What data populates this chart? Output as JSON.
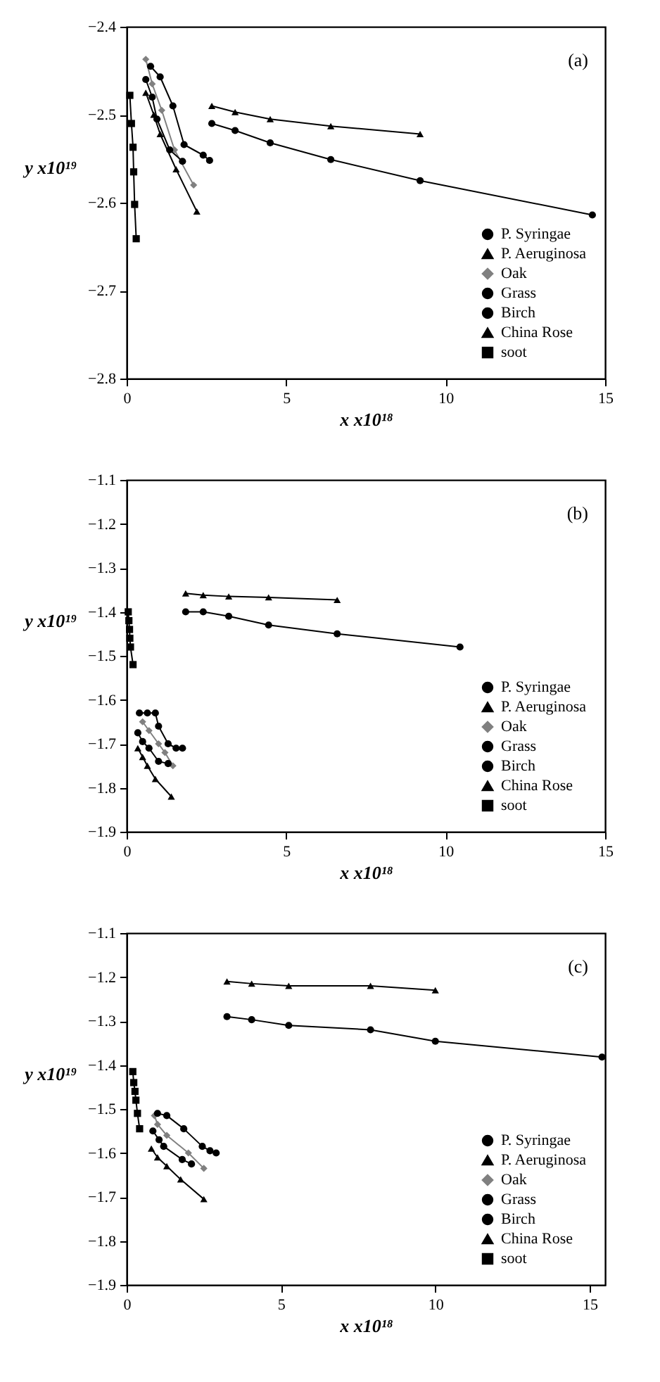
{
  "chart_data": [
    {
      "type": "line",
      "xlabel": "x x10¹⁸",
      "ylabel": "y x10¹⁹",
      "annotations": [
        "(a)"
      ],
      "xlim": [
        0,
        15
      ],
      "xticks": [
        0,
        5,
        10,
        15
      ],
      "ylim": [
        -2.8,
        -2.4
      ],
      "yticks": [
        -2.8,
        -2.7,
        -2.6,
        -2.5,
        -2.4
      ],
      "legend": "bottom right",
      "line_style": "solid",
      "series": [
        {
          "name": "P. Syringae",
          "color": "#000000",
          "marker": "circle",
          "x": [
            2.67,
            3.4,
            4.5,
            6.4,
            9.2,
            14.6
          ],
          "values": [
            -2.51,
            -2.518,
            -2.532,
            -2.551,
            -2.575,
            -2.614
          ]
        },
        {
          "name": "P. Aeruginosa",
          "color": "#000000",
          "marker": "triangle",
          "x": [
            2.67,
            3.4,
            4.5,
            6.4,
            9.2
          ],
          "values": [
            -2.49,
            -2.497,
            -2.505,
            -2.513,
            -2.522
          ]
        },
        {
          "name": "Oak",
          "color": "#808080",
          "marker": "diamond",
          "x": [
            0.6,
            0.8,
            1.1,
            1.5,
            2.1
          ],
          "values": [
            -2.437,
            -2.465,
            -2.495,
            -2.54,
            -2.58
          ]
        },
        {
          "name": "Grass",
          "color": "#000000",
          "marker": "circle",
          "x": [
            0.6,
            0.8,
            0.95,
            1.35,
            1.75
          ],
          "values": [
            -2.46,
            -2.48,
            -2.505,
            -2.54,
            -2.553
          ]
        },
        {
          "name": "Birch",
          "color": "#000000",
          "marker": "circle",
          "x": [
            0.75,
            1.05,
            1.45,
            1.8,
            2.4,
            2.6
          ],
          "values": [
            -2.445,
            -2.457,
            -2.49,
            -2.534,
            -2.546,
            -2.552
          ]
        },
        {
          "name": "China Rose",
          "color": "#000000",
          "marker": "triangle",
          "x": [
            0.6,
            0.85,
            1.05,
            1.55,
            2.2
          ],
          "values": [
            -2.475,
            -2.5,
            -2.522,
            -2.562,
            -2.61
          ]
        },
        {
          "name": "soot",
          "color": "#000000",
          "marker": "square",
          "x": [
            0.1,
            0.15,
            0.2,
            0.22,
            0.25,
            0.3
          ],
          "values": [
            -2.478,
            -2.51,
            -2.537,
            -2.565,
            -2.602,
            -2.641
          ]
        }
      ]
    },
    {
      "type": "line",
      "xlabel": "x x10¹⁸",
      "ylabel": "y x10¹⁹",
      "annotations": [
        "(b)"
      ],
      "xlim": [
        0,
        15
      ],
      "xticks": [
        0,
        5,
        10,
        15
      ],
      "ylim": [
        -1.9,
        -1.1
      ],
      "yticks": [
        -1.9,
        -1.8,
        -1.7,
        -1.6,
        -1.5,
        -1.4,
        -1.3,
        -1.2,
        -1.1
      ],
      "legend": "bottom right",
      "line_style": "solid",
      "series": [
        {
          "name": "P. Syringae",
          "color": "#000000",
          "marker": "circle",
          "x": [
            1.85,
            2.4,
            3.2,
            4.45,
            6.6,
            10.45
          ],
          "values": [
            -1.4,
            -1.4,
            -1.41,
            -1.43,
            -1.45,
            -1.48
          ]
        },
        {
          "name": "P. Aeruginosa",
          "color": "#000000",
          "marker": "triangle",
          "x": [
            1.85,
            2.4,
            3.2,
            4.45,
            6.6
          ],
          "values": [
            -1.358,
            -1.362,
            -1.365,
            -1.367,
            -1.373
          ]
        },
        {
          "name": "Oak",
          "color": "#808080",
          "marker": "diamond",
          "x": [
            0.5,
            0.7,
            1.0,
            1.2,
            1.45
          ],
          "values": [
            -1.65,
            -1.67,
            -1.7,
            -1.72,
            -1.75
          ]
        },
        {
          "name": "Grass",
          "color": "#000000",
          "marker": "circle",
          "x": [
            0.35,
            0.5,
            0.7,
            1.0,
            1.3
          ],
          "values": [
            -1.675,
            -1.695,
            -1.71,
            -1.74,
            -1.745
          ]
        },
        {
          "name": "Birch",
          "color": "#000000",
          "marker": "circle",
          "x": [
            0.4,
            0.65,
            0.9,
            1.0,
            1.3,
            1.55,
            1.75
          ],
          "values": [
            -1.63,
            -1.63,
            -1.63,
            -1.66,
            -1.7,
            -1.71,
            -1.71
          ]
        },
        {
          "name": "China Rose",
          "color": "#000000",
          "marker": "triangle",
          "x": [
            0.35,
            0.5,
            0.65,
            0.9,
            1.4
          ],
          "values": [
            -1.71,
            -1.73,
            -1.75,
            -1.78,
            -1.82
          ]
        },
        {
          "name": "soot",
          "color": "#000000",
          "marker": "square",
          "x": [
            0.05,
            0.07,
            0.09,
            0.1,
            0.12,
            0.2
          ],
          "values": [
            -1.4,
            -1.42,
            -1.44,
            -1.46,
            -1.48,
            -1.52
          ]
        }
      ]
    },
    {
      "type": "line",
      "xlabel": "x x10¹⁸",
      "ylabel": "y x10¹⁹",
      "annotations": [
        "(c)"
      ],
      "xlim": [
        0,
        15.5
      ],
      "xticks": [
        0,
        5,
        10,
        15
      ],
      "ylim": [
        -1.9,
        -1.1
      ],
      "yticks": [
        -1.9,
        -1.8,
        -1.7,
        -1.6,
        -1.5,
        -1.4,
        -1.3,
        -1.2,
        -1.1
      ],
      "legend": "bottom right",
      "line_style": "solid",
      "series": [
        {
          "name": "P. Syringae",
          "color": "#000000",
          "marker": "circle",
          "x": [
            3.25,
            4.05,
            5.25,
            7.9,
            10.0,
            15.4
          ],
          "values": [
            -1.29,
            -1.297,
            -1.31,
            -1.32,
            -1.346,
            -1.382
          ]
        },
        {
          "name": "P. Aeruginosa",
          "color": "#000000",
          "marker": "triangle",
          "x": [
            3.25,
            4.05,
            5.25,
            7.9,
            10.0
          ],
          "values": [
            -1.21,
            -1.215,
            -1.22,
            -1.22,
            -1.23
          ]
        },
        {
          "name": "Oak",
          "color": "#808080",
          "marker": "diamond",
          "x": [
            0.9,
            1.0,
            1.3,
            2.0,
            2.5
          ],
          "values": [
            -1.515,
            -1.535,
            -1.56,
            -1.6,
            -1.635
          ]
        },
        {
          "name": "Grass",
          "color": "#000000",
          "marker": "circle",
          "x": [
            0.85,
            1.05,
            1.2,
            1.8,
            2.1
          ],
          "values": [
            -1.55,
            -1.57,
            -1.585,
            -1.615,
            -1.625
          ]
        },
        {
          "name": "Birch",
          "color": "#000000",
          "marker": "circle",
          "x": [
            1.0,
            1.3,
            1.85,
            2.45,
            2.7,
            2.9
          ],
          "values": [
            -1.51,
            -1.515,
            -1.545,
            -1.585,
            -1.595,
            -1.6
          ]
        },
        {
          "name": "China Rose",
          "color": "#000000",
          "marker": "triangle",
          "x": [
            0.8,
            1.0,
            1.3,
            1.75,
            2.5
          ],
          "values": [
            -1.59,
            -1.61,
            -1.63,
            -1.66,
            -1.705
          ]
        },
        {
          "name": "soot",
          "color": "#000000",
          "marker": "square",
          "x": [
            0.2,
            0.23,
            0.27,
            0.3,
            0.35,
            0.42
          ],
          "values": [
            -1.415,
            -1.44,
            -1.46,
            -1.48,
            -1.51,
            -1.545
          ]
        }
      ]
    }
  ]
}
